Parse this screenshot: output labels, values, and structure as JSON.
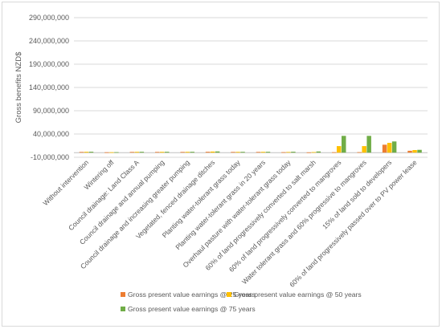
{
  "chart_data": {
    "type": "bar",
    "ylabel": "Gross benefits NZD$",
    "ylim": [
      -10000000,
      290000000
    ],
    "yticks": [
      290000000,
      240000000,
      190000000,
      140000000,
      90000000,
      40000000,
      -10000000
    ],
    "ytick_labels": [
      "290,000,000",
      "240,000,000",
      "190,000,000",
      "140,000,000",
      "90,000,000",
      "40,000,000",
      "-10,000,000"
    ],
    "grid": true,
    "legend_position": "bottom",
    "categories": [
      "Without intervention",
      "Wintering off",
      "Council drainage: Land Class A",
      "Council drainage and annual pumping",
      "Council drainage and increasing greater pumping",
      "Vegetated, fenced  drainage ditches",
      "Planting water-tolerant grass today",
      "Planting water-tolerant grass in 20 years",
      "Overhaul pasture with water-tolerant grass today",
      "60% of land progressively converted to salt marsh",
      "60% of land progressively converted to mangroves",
      "Water tolerant grass and 60% progressive to mangroves",
      "15% of land sold to developers",
      "60% of land progressively passed over to PV power lease"
    ],
    "series": [
      {
        "name": "Gross present value earnings @ 25 years",
        "color": "#ED7D31",
        "values": [
          1500000,
          800000,
          1500000,
          1500000,
          1500000,
          1800000,
          1500000,
          1500000,
          1000000,
          600000,
          900000,
          1000000,
          17000000,
          4000000
        ]
      },
      {
        "name": "Gross present value earnings @ 50 years",
        "color": "#FFC000",
        "values": [
          1800000,
          900000,
          1700000,
          1700000,
          1700000,
          2300000,
          1600000,
          1700000,
          1400000,
          1200000,
          14000000,
          14000000,
          21000000,
          5500000
        ]
      },
      {
        "name": "Gross present value earnings @ 75 years",
        "color": "#70AD47",
        "values": [
          1900000,
          1000000,
          1800000,
          1800000,
          1800000,
          2600000,
          1700000,
          1800000,
          1900000,
          2500000,
          36000000,
          36000000,
          24000000,
          6000000
        ]
      }
    ]
  }
}
